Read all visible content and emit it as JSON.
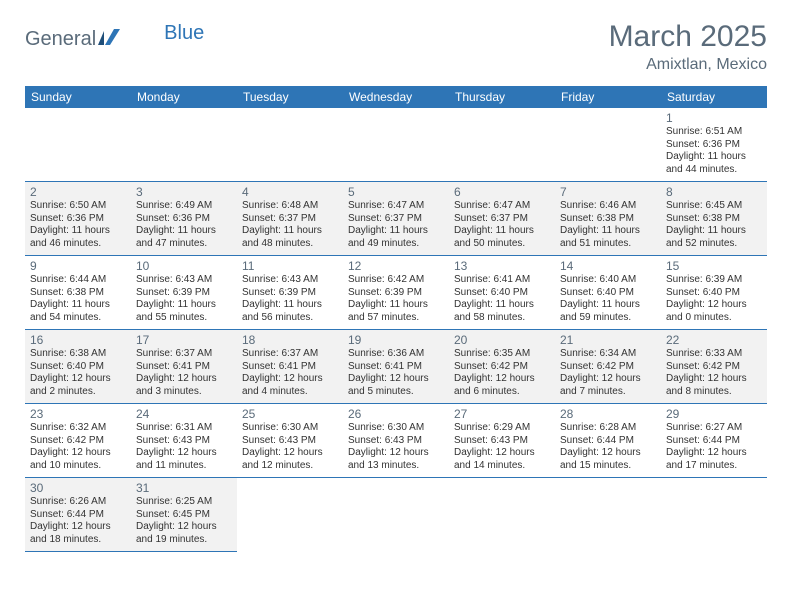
{
  "brand": {
    "part1": "General",
    "part2": "Blue"
  },
  "title": "March 2025",
  "location": "Amixtlan, Mexico",
  "weekdays": [
    "Sunday",
    "Monday",
    "Tuesday",
    "Wednesday",
    "Thursday",
    "Friday",
    "Saturday"
  ],
  "colors": {
    "header_bg": "#2e75b6",
    "header_text": "#ffffff",
    "border": "#2e75b6",
    "shaded": "#f2f2f2",
    "muted_text": "#5a6b7a"
  },
  "startOffset": 6,
  "days": [
    {
      "n": "1",
      "sr": "6:51 AM",
      "ss": "6:36 PM",
      "dl": "11 hours and 44 minutes."
    },
    {
      "n": "2",
      "sr": "6:50 AM",
      "ss": "6:36 PM",
      "dl": "11 hours and 46 minutes."
    },
    {
      "n": "3",
      "sr": "6:49 AM",
      "ss": "6:36 PM",
      "dl": "11 hours and 47 minutes."
    },
    {
      "n": "4",
      "sr": "6:48 AM",
      "ss": "6:37 PM",
      "dl": "11 hours and 48 minutes."
    },
    {
      "n": "5",
      "sr": "6:47 AM",
      "ss": "6:37 PM",
      "dl": "11 hours and 49 minutes."
    },
    {
      "n": "6",
      "sr": "6:47 AM",
      "ss": "6:37 PM",
      "dl": "11 hours and 50 minutes."
    },
    {
      "n": "7",
      "sr": "6:46 AM",
      "ss": "6:38 PM",
      "dl": "11 hours and 51 minutes."
    },
    {
      "n": "8",
      "sr": "6:45 AM",
      "ss": "6:38 PM",
      "dl": "11 hours and 52 minutes."
    },
    {
      "n": "9",
      "sr": "6:44 AM",
      "ss": "6:38 PM",
      "dl": "11 hours and 54 minutes."
    },
    {
      "n": "10",
      "sr": "6:43 AM",
      "ss": "6:39 PM",
      "dl": "11 hours and 55 minutes."
    },
    {
      "n": "11",
      "sr": "6:43 AM",
      "ss": "6:39 PM",
      "dl": "11 hours and 56 minutes."
    },
    {
      "n": "12",
      "sr": "6:42 AM",
      "ss": "6:39 PM",
      "dl": "11 hours and 57 minutes."
    },
    {
      "n": "13",
      "sr": "6:41 AM",
      "ss": "6:40 PM",
      "dl": "11 hours and 58 minutes."
    },
    {
      "n": "14",
      "sr": "6:40 AM",
      "ss": "6:40 PM",
      "dl": "11 hours and 59 minutes."
    },
    {
      "n": "15",
      "sr": "6:39 AM",
      "ss": "6:40 PM",
      "dl": "12 hours and 0 minutes."
    },
    {
      "n": "16",
      "sr": "6:38 AM",
      "ss": "6:40 PM",
      "dl": "12 hours and 2 minutes."
    },
    {
      "n": "17",
      "sr": "6:37 AM",
      "ss": "6:41 PM",
      "dl": "12 hours and 3 minutes."
    },
    {
      "n": "18",
      "sr": "6:37 AM",
      "ss": "6:41 PM",
      "dl": "12 hours and 4 minutes."
    },
    {
      "n": "19",
      "sr": "6:36 AM",
      "ss": "6:41 PM",
      "dl": "12 hours and 5 minutes."
    },
    {
      "n": "20",
      "sr": "6:35 AM",
      "ss": "6:42 PM",
      "dl": "12 hours and 6 minutes."
    },
    {
      "n": "21",
      "sr": "6:34 AM",
      "ss": "6:42 PM",
      "dl": "12 hours and 7 minutes."
    },
    {
      "n": "22",
      "sr": "6:33 AM",
      "ss": "6:42 PM",
      "dl": "12 hours and 8 minutes."
    },
    {
      "n": "23",
      "sr": "6:32 AM",
      "ss": "6:42 PM",
      "dl": "12 hours and 10 minutes."
    },
    {
      "n": "24",
      "sr": "6:31 AM",
      "ss": "6:43 PM",
      "dl": "12 hours and 11 minutes."
    },
    {
      "n": "25",
      "sr": "6:30 AM",
      "ss": "6:43 PM",
      "dl": "12 hours and 12 minutes."
    },
    {
      "n": "26",
      "sr": "6:30 AM",
      "ss": "6:43 PM",
      "dl": "12 hours and 13 minutes."
    },
    {
      "n": "27",
      "sr": "6:29 AM",
      "ss": "6:43 PM",
      "dl": "12 hours and 14 minutes."
    },
    {
      "n": "28",
      "sr": "6:28 AM",
      "ss": "6:44 PM",
      "dl": "12 hours and 15 minutes."
    },
    {
      "n": "29",
      "sr": "6:27 AM",
      "ss": "6:44 PM",
      "dl": "12 hours and 17 minutes."
    },
    {
      "n": "30",
      "sr": "6:26 AM",
      "ss": "6:44 PM",
      "dl": "12 hours and 18 minutes."
    },
    {
      "n": "31",
      "sr": "6:25 AM",
      "ss": "6:45 PM",
      "dl": "12 hours and 19 minutes."
    }
  ],
  "labels": {
    "sunrise": "Sunrise:",
    "sunset": "Sunset:",
    "daylight": "Daylight:"
  }
}
